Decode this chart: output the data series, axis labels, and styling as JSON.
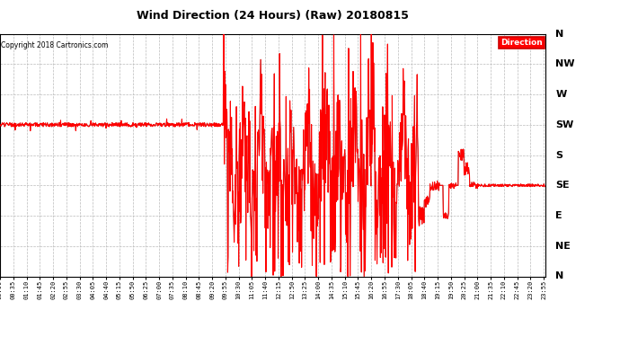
{
  "title": "Wind Direction (24 Hours) (Raw) 20180815",
  "copyright": "Copyright 2018 Cartronics.com",
  "y_labels_top_to_bottom": [
    "N",
    "NW",
    "W",
    "SW",
    "S",
    "SE",
    "E",
    "NE",
    "N"
  ],
  "y_values_top_to_bottom": [
    360,
    315,
    270,
    225,
    180,
    135,
    90,
    45,
    0
  ],
  "ylim": [
    0,
    360
  ],
  "bg_color": "#ffffff",
  "grid_color": "#bbbbbb",
  "line_color_red": "#ff0000",
  "line_color_dark": "#444444",
  "legend_label": "Direction",
  "legend_bg": "#ff0000",
  "legend_text_color": "#ffffff",
  "sw_value": 225,
  "se_value": 135,
  "tick_step_minutes": 35,
  "data_step_minutes": 1
}
